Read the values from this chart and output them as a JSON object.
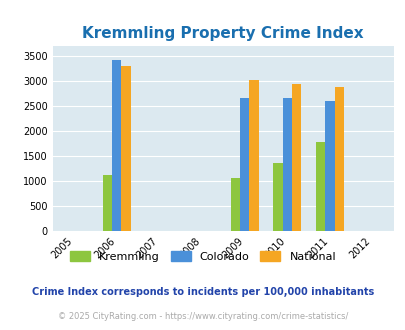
{
  "title": "Kremmling Property Crime Index",
  "all_years": [
    2005,
    2006,
    2007,
    2008,
    2009,
    2010,
    2011,
    2012
  ],
  "data_years": [
    2006,
    2009,
    2010,
    2011
  ],
  "kremmling": [
    1120,
    1060,
    1370,
    1780
  ],
  "colorado": [
    3430,
    2660,
    2670,
    2610
  ],
  "national": [
    3310,
    3030,
    2940,
    2890
  ],
  "bar_width": 0.22,
  "colors": {
    "kremmling": "#8dc63f",
    "colorado": "#4a90d9",
    "national": "#f5a623"
  },
  "ylim": [
    0,
    3700
  ],
  "yticks": [
    0,
    500,
    1000,
    1500,
    2000,
    2500,
    3000,
    3500
  ],
  "title_color": "#1a6faf",
  "title_fontsize": 11,
  "bg_color": "#dce9f0",
  "legend_labels": [
    "Kremmling",
    "Colorado",
    "National"
  ],
  "footnote1": "Crime Index corresponds to incidents per 100,000 inhabitants",
  "footnote2": "© 2025 CityRating.com - https://www.cityrating.com/crime-statistics/",
  "footnote_color1": "#2244aa",
  "footnote_color2": "#aaaaaa"
}
